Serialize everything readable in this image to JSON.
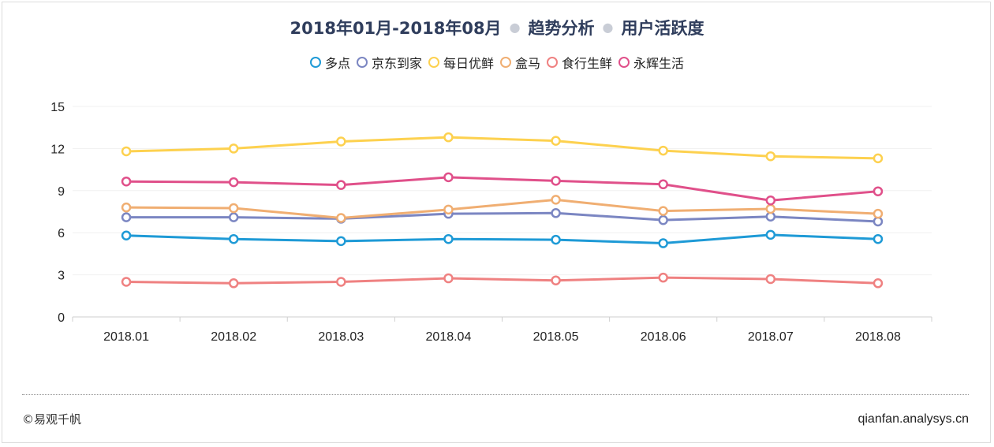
{
  "header": {
    "date_range": "2018年01月-2018年08月",
    "section": "趋势分析",
    "metric": "用户活跃度"
  },
  "footer": {
    "copyright": "©易观千帆",
    "site": "qianfan.analysys.cn"
  },
  "chart_data": {
    "type": "line",
    "title": "2018年01月-2018年08月 · 趋势分析 · 用户活跃度",
    "categories": [
      "2018.01",
      "2018.02",
      "2018.03",
      "2018.04",
      "2018.05",
      "2018.06",
      "2018.07",
      "2018.08"
    ],
    "ylim": [
      0,
      15
    ],
    "yticks": [
      0,
      3,
      6,
      9,
      12,
      15
    ],
    "grid": "horizontal",
    "legend_position": "top-center",
    "series": [
      {
        "name": "多点",
        "color": "#1e9ad6",
        "values": [
          5.8,
          5.55,
          5.4,
          5.55,
          5.5,
          5.25,
          5.85,
          5.55
        ]
      },
      {
        "name": "京东到家",
        "color": "#7b86c2",
        "values": [
          7.1,
          7.1,
          7.0,
          7.35,
          7.4,
          6.9,
          7.15,
          6.8
        ]
      },
      {
        "name": "每日优鲜",
        "color": "#fdd14f",
        "values": [
          11.8,
          12.0,
          12.5,
          12.8,
          12.55,
          11.85,
          11.45,
          11.3
        ]
      },
      {
        "name": "盒马",
        "color": "#f0ae72",
        "values": [
          7.8,
          7.75,
          7.05,
          7.65,
          8.35,
          7.55,
          7.7,
          7.35
        ]
      },
      {
        "name": "食行生鲜",
        "color": "#ef8181",
        "values": [
          2.5,
          2.4,
          2.5,
          2.75,
          2.6,
          2.8,
          2.7,
          2.4
        ]
      },
      {
        "name": "永辉生活",
        "color": "#e0508a",
        "values": [
          9.65,
          9.6,
          9.4,
          9.95,
          9.7,
          9.45,
          8.3,
          8.95
        ]
      }
    ]
  }
}
